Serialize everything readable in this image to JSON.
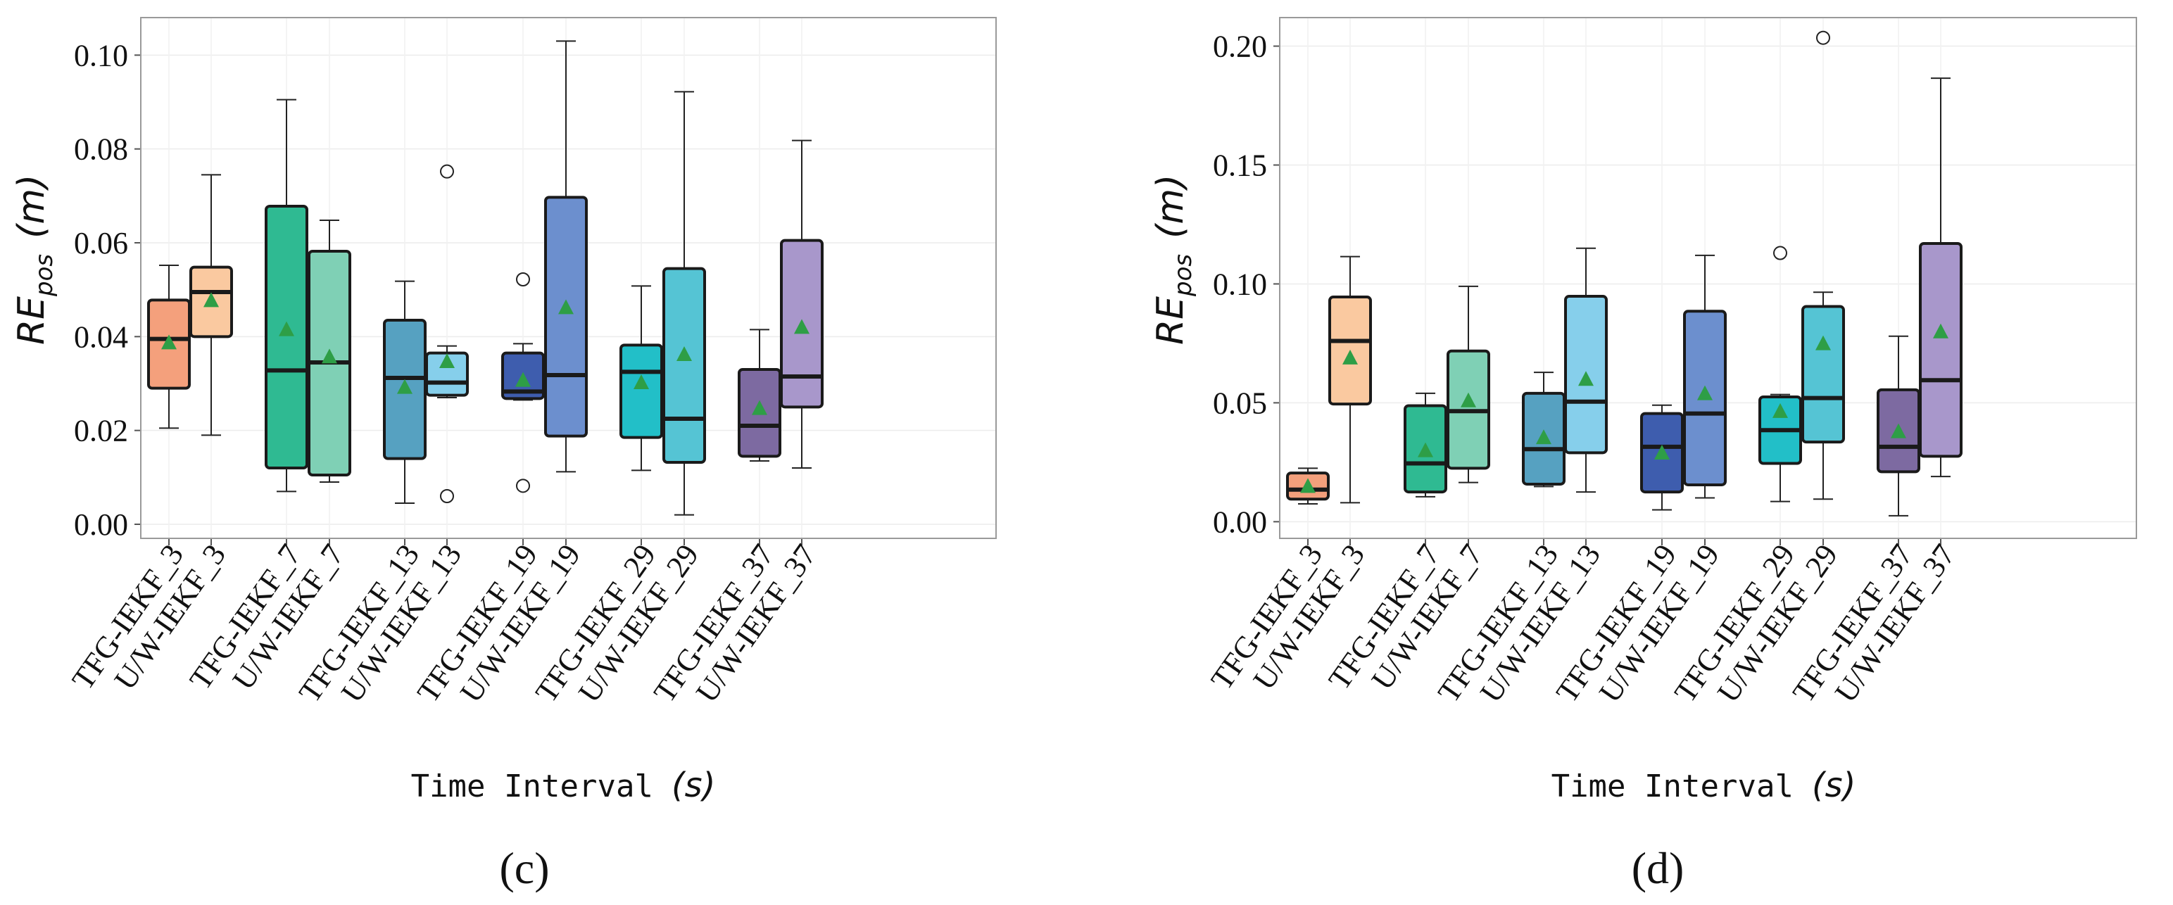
{
  "chart_data": [
    {
      "type": "box",
      "panel_label": "(c)",
      "xlabel": "Time Interval",
      "xlabel_unit": "(s)",
      "ylabel": "RE",
      "ylabel_sub": "pos",
      "ylabel_unit": "(m)",
      "ylim": [
        -0.003,
        0.108
      ],
      "yticks": [
        0.0,
        0.02,
        0.04,
        0.06,
        0.08,
        0.1
      ],
      "ytick_labels": [
        "0.00",
        "0.02",
        "0.04",
        "0.06",
        "0.08",
        "0.10"
      ],
      "grid": true,
      "categories": [
        "TFG-IEKF_3",
        "U/W-IEKF_3",
        "TFG-IEKF_7",
        "U/W-IEKF_7",
        "TFG-IEKF_13",
        "U/W-IEKF_13",
        "TFG-IEKF_19",
        "U/W-IEKF_19",
        "TFG-IEKF_29",
        "U/W-IEKF_29",
        "TFG-IEKF_37",
        "U/W-IEKF_37"
      ],
      "boxes": [
        {
          "name": "TFG-IEKF_3",
          "color": "#F4A07C",
          "whisker_low": 0.0205,
          "q1": 0.029,
          "median": 0.0395,
          "q3": 0.0478,
          "whisker_high": 0.0552,
          "mean": 0.0385,
          "outliers": []
        },
        {
          "name": "U/W-IEKF_3",
          "color": "#FAC9A0",
          "whisker_low": 0.019,
          "q1": 0.04,
          "median": 0.0495,
          "q3": 0.0548,
          "whisker_high": 0.0745,
          "mean": 0.0475,
          "outliers": []
        },
        {
          "name": "TFG-IEKF_7",
          "color": "#2FBA92",
          "whisker_low": 0.007,
          "q1": 0.012,
          "median": 0.0328,
          "q3": 0.0678,
          "whisker_high": 0.0905,
          "mean": 0.0413,
          "outliers": []
        },
        {
          "name": "U/W-IEKF_7",
          "color": "#7FD0B5",
          "whisker_low": 0.009,
          "q1": 0.0105,
          "median": 0.0345,
          "q3": 0.0582,
          "whisker_high": 0.0648,
          "mean": 0.0355,
          "outliers": []
        },
        {
          "name": "TFG-IEKF_13",
          "color": "#56A1C1",
          "whisker_low": 0.0045,
          "q1": 0.014,
          "median": 0.0312,
          "q3": 0.0435,
          "whisker_high": 0.0518,
          "mean": 0.029,
          "outliers": []
        },
        {
          "name": "U/W-IEKF_13",
          "color": "#86CFEB",
          "whisker_low": 0.027,
          "q1": 0.0275,
          "median": 0.0302,
          "q3": 0.0365,
          "whisker_high": 0.038,
          "mean": 0.0345,
          "outliers": [
            0.0752,
            0.006
          ]
        },
        {
          "name": "TFG-IEKF_19",
          "color": "#3E5DAE",
          "whisker_low": 0.0265,
          "q1": 0.0268,
          "median": 0.0283,
          "q3": 0.0365,
          "whisker_high": 0.0385,
          "mean": 0.0305,
          "outliers": [
            0.0522,
            0.0082
          ]
        },
        {
          "name": "U/W-IEKF_19",
          "color": "#6C8FCE",
          "whisker_low": 0.0112,
          "q1": 0.0188,
          "median": 0.0318,
          "q3": 0.0697,
          "whisker_high": 0.103,
          "mean": 0.046,
          "outliers": []
        },
        {
          "name": "TFG-IEKF_29",
          "color": "#22BFC8",
          "whisker_low": 0.0115,
          "q1": 0.0185,
          "median": 0.0325,
          "q3": 0.0382,
          "whisker_high": 0.0508,
          "mean": 0.03,
          "outliers": []
        },
        {
          "name": "U/W-IEKF_29",
          "color": "#55C4D4",
          "whisker_low": 0.002,
          "q1": 0.0132,
          "median": 0.0225,
          "q3": 0.0545,
          "whisker_high": 0.0922,
          "mean": 0.036,
          "outliers": []
        },
        {
          "name": "TFG-IEKF_37",
          "color": "#7D6AA1",
          "whisker_low": 0.0135,
          "q1": 0.0145,
          "median": 0.021,
          "q3": 0.033,
          "whisker_high": 0.0415,
          "mean": 0.0245,
          "outliers": []
        },
        {
          "name": "U/W-IEKF_37",
          "color": "#A897CB",
          "whisker_low": 0.012,
          "q1": 0.025,
          "median": 0.0315,
          "q3": 0.0605,
          "whisker_high": 0.0818,
          "mean": 0.0418,
          "outliers": []
        }
      ]
    },
    {
      "type": "box",
      "panel_label": "(d)",
      "xlabel": "Time Interval",
      "xlabel_unit": "(s)",
      "ylabel": "RE",
      "ylabel_sub": "pos",
      "ylabel_unit": "(m)",
      "ylim": [
        -0.007,
        0.212
      ],
      "yticks": [
        0.0,
        0.05,
        0.1,
        0.15,
        0.2
      ],
      "ytick_labels": [
        "0.00",
        "0.05",
        "0.10",
        "0.15",
        "0.20"
      ],
      "grid": true,
      "categories": [
        "TFG-IEKF_3",
        "U/W-IEKF_3",
        "TFG-IEKF_7",
        "U/W-IEKF_7",
        "TFG-IEKF_13",
        "U/W-IEKF_13",
        "TFG-IEKF_19",
        "U/W-IEKF_19",
        "TFG-IEKF_29",
        "U/W-IEKF_29",
        "TFG-IEKF_37",
        "U/W-IEKF_37"
      ],
      "boxes": [
        {
          "name": "TFG-IEKF_3",
          "color": "#F4A07C",
          "whisker_low": 0.0075,
          "q1": 0.0095,
          "median": 0.0135,
          "q3": 0.0205,
          "whisker_high": 0.0225,
          "mean": 0.0145,
          "outliers": []
        },
        {
          "name": "U/W-IEKF_3",
          "color": "#FAC9A0",
          "whisker_low": 0.008,
          "q1": 0.0495,
          "median": 0.076,
          "q3": 0.0945,
          "whisker_high": 0.1115,
          "mean": 0.0685,
          "outliers": []
        },
        {
          "name": "TFG-IEKF_7",
          "color": "#2FBA92",
          "whisker_low": 0.0105,
          "q1": 0.0125,
          "median": 0.0245,
          "q3": 0.0488,
          "whisker_high": 0.054,
          "mean": 0.0295,
          "outliers": []
        },
        {
          "name": "U/W-IEKF_7",
          "color": "#7FD0B5",
          "whisker_low": 0.0165,
          "q1": 0.0225,
          "median": 0.0465,
          "q3": 0.0718,
          "whisker_high": 0.099,
          "mean": 0.0505,
          "outliers": []
        },
        {
          "name": "TFG-IEKF_13",
          "color": "#56A1C1",
          "whisker_low": 0.0148,
          "q1": 0.0158,
          "median": 0.0305,
          "q3": 0.054,
          "whisker_high": 0.0628,
          "mean": 0.035,
          "outliers": []
        },
        {
          "name": "U/W-IEKF_13",
          "color": "#86CFEB",
          "whisker_low": 0.0125,
          "q1": 0.029,
          "median": 0.0505,
          "q3": 0.0948,
          "whisker_high": 0.115,
          "mean": 0.0595,
          "outliers": []
        },
        {
          "name": "TFG-IEKF_19",
          "color": "#3E5DAE",
          "whisker_low": 0.005,
          "q1": 0.0125,
          "median": 0.0315,
          "q3": 0.0455,
          "whisker_high": 0.049,
          "mean": 0.0285,
          "outliers": []
        },
        {
          "name": "U/W-IEKF_19",
          "color": "#6C8FCE",
          "whisker_low": 0.01,
          "q1": 0.0155,
          "median": 0.0455,
          "q3": 0.0885,
          "whisker_high": 0.112,
          "mean": 0.0535,
          "outliers": []
        },
        {
          "name": "TFG-IEKF_29",
          "color": "#22BFC8",
          "whisker_low": 0.0085,
          "q1": 0.0245,
          "median": 0.0385,
          "q3": 0.0525,
          "whisker_high": 0.0535,
          "mean": 0.046,
          "outliers": [
            0.113
          ]
        },
        {
          "name": "U/W-IEKF_29",
          "color": "#55C4D4",
          "whisker_low": 0.0095,
          "q1": 0.0335,
          "median": 0.052,
          "q3": 0.0905,
          "whisker_high": 0.0965,
          "mean": 0.0745,
          "outliers": [
            0.2035
          ]
        },
        {
          "name": "TFG-IEKF_37",
          "color": "#7D6AA1",
          "whisker_low": 0.0025,
          "q1": 0.021,
          "median": 0.0315,
          "q3": 0.0555,
          "whisker_high": 0.078,
          "mean": 0.0375,
          "outliers": []
        },
        {
          "name": "U/W-IEKF_37",
          "color": "#A897CB",
          "whisker_low": 0.019,
          "q1": 0.0275,
          "median": 0.0595,
          "q3": 0.117,
          "whisker_high": 0.1865,
          "mean": 0.0795,
          "outliers": []
        }
      ]
    }
  ]
}
